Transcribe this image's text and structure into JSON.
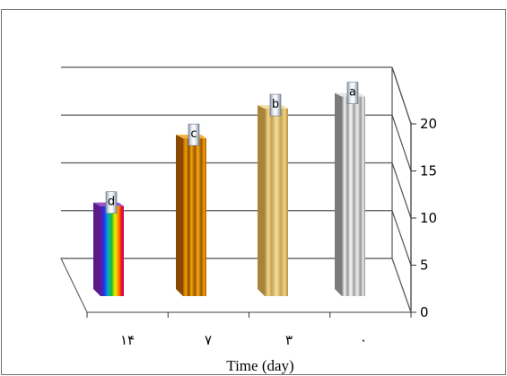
{
  "chart_data": {
    "type": "bar",
    "style": "3d-column",
    "categories": [
      "۱۴",
      "۷",
      "۳",
      "۰"
    ],
    "values": [
      9.7,
      17.0,
      20.2,
      21.5
    ],
    "significance_letters": [
      "d",
      "c",
      "b",
      "a"
    ],
    "bar_styles": [
      "rainbow",
      "orange",
      "tan",
      "silver"
    ],
    "xlabel": "Time (day)",
    "ylabel": "",
    "ylim": [
      0,
      20
    ],
    "yticks": [
      0,
      5,
      10,
      15,
      20
    ],
    "y_axis_side": "right",
    "grid": true,
    "legend": "none",
    "colors": {
      "orange": "#e08a00",
      "tan": "#e2c070",
      "silver": "#c8c8c8",
      "grid": "#555555"
    }
  }
}
